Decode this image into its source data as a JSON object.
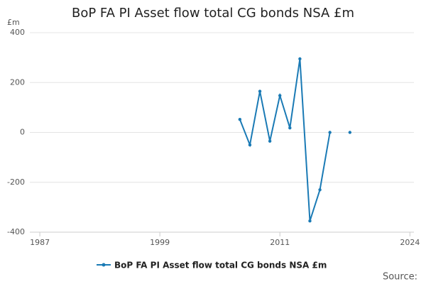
{
  "chart_data": {
    "type": "line",
    "title": "BoP FA PI Asset flow total CG bonds NSA £m",
    "y_unit": "£m",
    "source": "Source:",
    "x": [
      2007,
      2008,
      2009,
      2010,
      2011,
      2012,
      2013,
      2014,
      2015,
      2016,
      2017,
      2018
    ],
    "series": [
      {
        "name": "BoP FA PI Asset flow total CG bonds NSA £m",
        "color": "#1a7ab5",
        "values": [
          52,
          -50,
          165,
          -35,
          148,
          18,
          295,
          -355,
          -230,
          0,
          null,
          0
        ]
      }
    ],
    "xlim": [
      1986,
      2024.4
    ],
    "xticks": [
      1987,
      1999,
      2011,
      2024
    ],
    "ylim": [
      -400,
      400
    ],
    "yticks": [
      -400,
      -200,
      0,
      200,
      400
    ],
    "grid": true
  }
}
